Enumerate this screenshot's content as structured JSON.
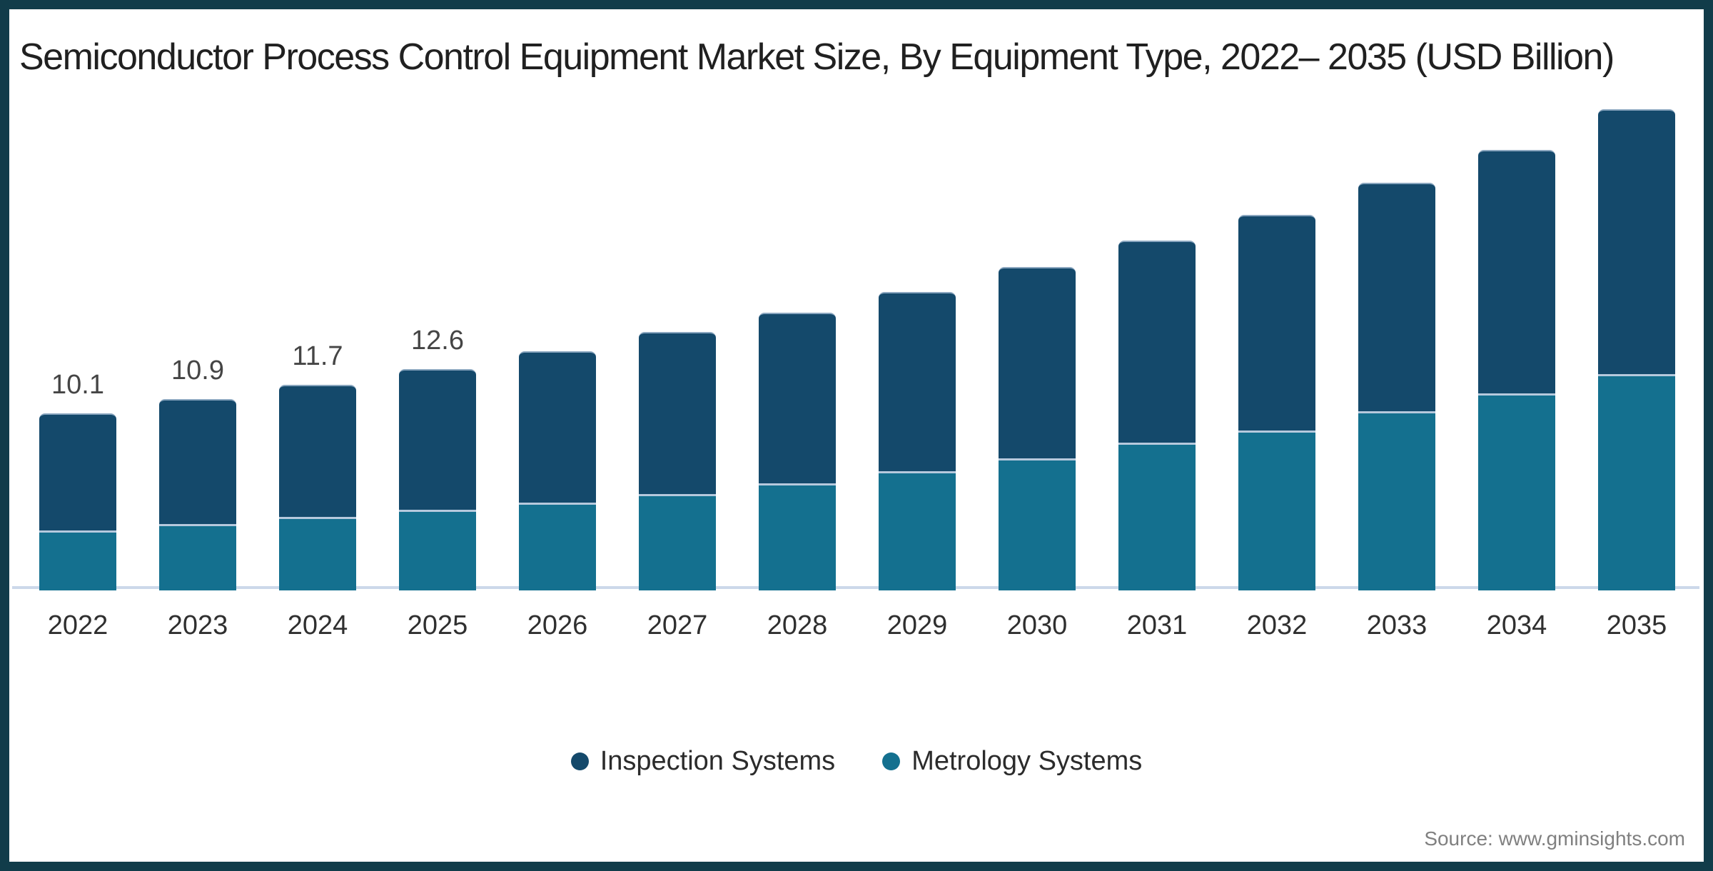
{
  "chart_data": {
    "type": "bar",
    "stacked": true,
    "title": "Semiconductor Process Control Equipment Market Size, By Equipment Type, 2022– 2035 (USD Billion)",
    "unit": "USD Billion",
    "categories": [
      "2022",
      "2023",
      "2024",
      "2025",
      "2026",
      "2027",
      "2028",
      "2029",
      "2030",
      "2031",
      "2032",
      "2033",
      "2034",
      "2035"
    ],
    "series": [
      {
        "name": "Inspection Systems",
        "position": "top",
        "color": "#14496b",
        "values": [
          6.7,
          7.1,
          7.5,
          8.0,
          8.6,
          9.2,
          9.7,
          10.2,
          10.9,
          11.5,
          12.3,
          13.0,
          13.9,
          15.1
        ]
      },
      {
        "name": "Metrology Systems",
        "position": "bottom",
        "color": "#14708f",
        "values": [
          3.4,
          3.8,
          4.2,
          4.6,
          5.0,
          5.5,
          6.1,
          6.8,
          7.5,
          8.4,
          9.1,
          10.2,
          11.2,
          12.3
        ]
      }
    ],
    "totals": [
      10.1,
      10.9,
      11.7,
      12.6,
      13.6,
      14.7,
      15.8,
      17.0,
      18.4,
      19.9,
      21.4,
      23.2,
      25.1,
      27.4
    ],
    "data_labels": [
      "10.1",
      "10.9",
      "11.7",
      "12.6",
      "",
      "",
      "",
      "",
      "",
      "",
      "",
      "",
      "",
      ""
    ],
    "legend_position": "bottom",
    "legend_marker": "circle",
    "grid": false,
    "value_axis_visible": false,
    "baseline_color": "#ccd8ea",
    "ylim": [
      0,
      28
    ]
  },
  "source": {
    "text": "Source: www.gminsights.com"
  },
  "colors": {
    "frame_border": "#113c4a",
    "background": "#ffffff",
    "title_text": "#202020",
    "data_label_text": "#454545",
    "axis_label_text": "#2f2f2f",
    "legend_text": "#2b2b2b",
    "source_text": "#808080"
  }
}
